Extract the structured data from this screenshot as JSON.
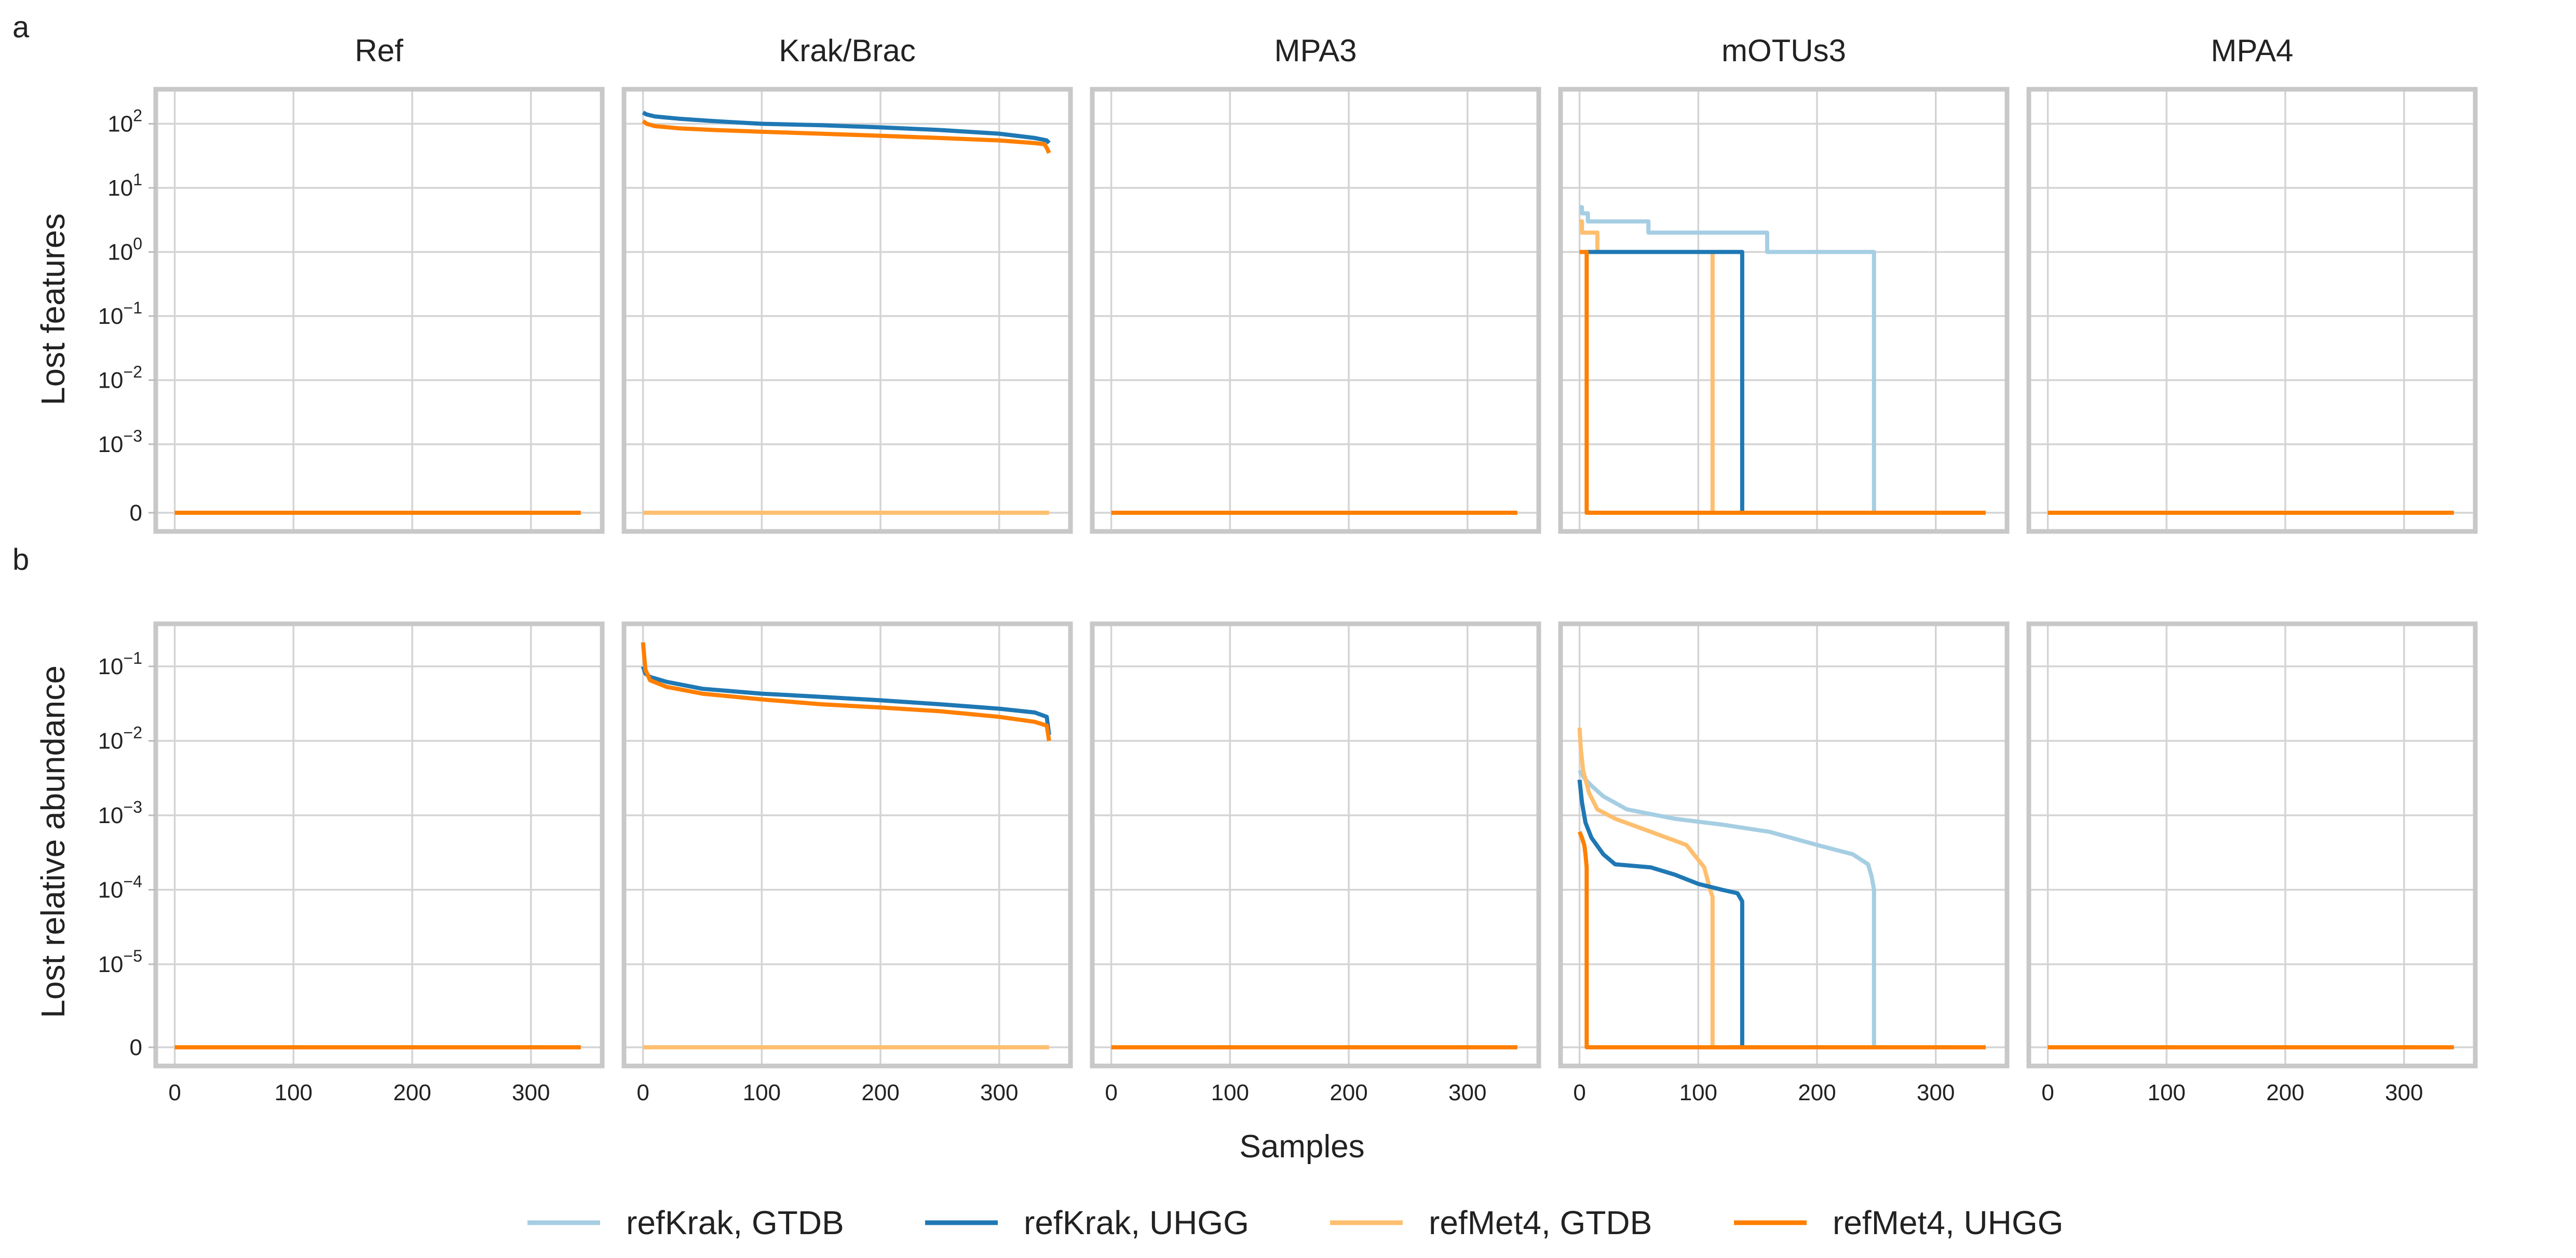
{
  "panel_labels": [
    "a",
    "b"
  ],
  "legend": [
    {
      "label": "refKrak, GTDB",
      "color": "#a6cee3"
    },
    {
      "label": "refKrak, UHGG",
      "color": "#1f78b4"
    },
    {
      "label": "refMet4, GTDB",
      "color": "#fdbf6f"
    },
    {
      "label": "refMet4, UHGG",
      "color": "#ff7f00"
    }
  ],
  "chart_data": {
    "type": "line",
    "xlabel": "Samples",
    "columns": [
      "Ref",
      "Krak/Brac",
      "MPA3",
      "mOTUs3",
      "MPA4"
    ],
    "x_ticks": [
      0,
      100,
      200,
      300
    ],
    "xlim": [
      -16,
      360
    ],
    "series_names": [
      "refKrak, GTDB",
      "refKrak, UHGG",
      "refMet4, GTDB",
      "refMet4, UHGG"
    ],
    "rows": [
      {
        "ylabel": "Lost features",
        "y_scale": "symlog",
        "y_ticks": [
          {
            "value": 0,
            "base": "0",
            "exp": ""
          },
          {
            "value": 0.001,
            "base": "10",
            "exp": "−3"
          },
          {
            "value": 0.01,
            "base": "10",
            "exp": "−2"
          },
          {
            "value": 0.1,
            "base": "10",
            "exp": "−1"
          },
          {
            "value": 1,
            "base": "10",
            "exp": "0"
          },
          {
            "value": 10,
            "base": "10",
            "exp": "1"
          },
          {
            "value": 100,
            "base": "10",
            "exp": "2"
          }
        ],
        "panels": [
          {
            "column": "Ref",
            "series": [
              {
                "name": "refMet4, UHGG",
                "x": [
                  0,
                  342
                ],
                "y": [
                  0,
                  0
                ]
              }
            ]
          },
          {
            "column": "Krak/Brac",
            "series": [
              {
                "name": "refMet4, GTDB",
                "x": [
                  0,
                  342
                ],
                "y": [
                  0,
                  0
                ]
              },
              {
                "name": "refKrak, UHGG",
                "x": [
                  0,
                  3,
                  10,
                  30,
                  60,
                  100,
                  150,
                  200,
                  250,
                  300,
                  330,
                  340,
                  342
                ],
                "y": [
                  150,
                  140,
                  130,
                  120,
                  110,
                  100,
                  95,
                  88,
                  80,
                  70,
                  60,
                  55,
                  50
                ]
              },
              {
                "name": "refMet4, UHGG",
                "x": [
                  0,
                  3,
                  10,
                  30,
                  60,
                  100,
                  150,
                  200,
                  250,
                  300,
                  330,
                  338,
                  340,
                  342
                ],
                "y": [
                  110,
                  100,
                  92,
                  85,
                  80,
                  75,
                  70,
                  65,
                  60,
                  55,
                  50,
                  48,
                  42,
                  35
                ]
              }
            ]
          },
          {
            "column": "MPA3",
            "series": [
              {
                "name": "refMet4, UHGG",
                "x": [
                  0,
                  342
                ],
                "y": [
                  0,
                  0
                ]
              }
            ]
          },
          {
            "column": "mOTUs3",
            "series": [
              {
                "name": "refKrak, GTDB",
                "x": [
                  0,
                  2,
                  2,
                  7,
                  7,
                  14,
                  14,
                  58,
                  58,
                  158,
                  158,
                  248,
                  248,
                  342
                ],
                "y": [
                  5,
                  5,
                  4,
                  4,
                  3,
                  3,
                  3,
                  3,
                  2,
                  2,
                  1,
                  1,
                  0,
                  0
                ]
              },
              {
                "name": "refMet4, GTDB",
                "x": [
                  0,
                  2,
                  2,
                  8,
                  8,
                  15,
                  15,
                  112,
                  112,
                  342
                ],
                "y": [
                  3,
                  3,
                  2,
                  2,
                  2,
                  2,
                  1,
                  1,
                  0,
                  0
                ]
              },
              {
                "name": "refKrak, UHGG",
                "x": [
                  0,
                  137,
                  137,
                  342
                ],
                "y": [
                  1,
                  1,
                  0,
                  0
                ]
              },
              {
                "name": "refMet4, UHGG",
                "x": [
                  0,
                  6,
                  6,
                  342
                ],
                "y": [
                  1,
                  1,
                  0,
                  0
                ]
              }
            ]
          },
          {
            "column": "MPA4",
            "series": [
              {
                "name": "refMet4, UHGG",
                "x": [
                  0,
                  342
                ],
                "y": [
                  0,
                  0
                ]
              }
            ]
          }
        ]
      },
      {
        "ylabel": "Lost relative abundance",
        "y_scale": "symlog",
        "y_ticks": [
          {
            "value": 0,
            "base": "0",
            "exp": ""
          },
          {
            "value": 1e-05,
            "base": "10",
            "exp": "−5"
          },
          {
            "value": 0.0001,
            "base": "10",
            "exp": "−4"
          },
          {
            "value": 0.001,
            "base": "10",
            "exp": "−3"
          },
          {
            "value": 0.01,
            "base": "10",
            "exp": "−2"
          },
          {
            "value": 0.1,
            "base": "10",
            "exp": "−1"
          }
        ],
        "panels": [
          {
            "column": "Ref",
            "series": [
              {
                "name": "refMet4, UHGG",
                "x": [
                  0,
                  342
                ],
                "y": [
                  0,
                  0
                ]
              }
            ]
          },
          {
            "column": "Krak/Brac",
            "series": [
              {
                "name": "refMet4, GTDB",
                "x": [
                  0,
                  342
                ],
                "y": [
                  0,
                  0
                ]
              },
              {
                "name": "refKrak, UHGG",
                "x": [
                  0,
                  2,
                  6,
                  20,
                  50,
                  100,
                  150,
                  200,
                  250,
                  300,
                  330,
                  340,
                  342
                ],
                "y": [
                  0.1,
                  0.08,
                  0.072,
                  0.062,
                  0.05,
                  0.043,
                  0.039,
                  0.035,
                  0.031,
                  0.027,
                  0.024,
                  0.021,
                  0.012
                ]
              },
              {
                "name": "refMet4, UHGG",
                "x": [
                  0,
                  2,
                  6,
                  20,
                  50,
                  100,
                  150,
                  200,
                  250,
                  300,
                  330,
                  340,
                  342
                ],
                "y": [
                  0.21,
                  0.09,
                  0.065,
                  0.053,
                  0.043,
                  0.036,
                  0.031,
                  0.028,
                  0.025,
                  0.021,
                  0.018,
                  0.016,
                  0.01
                ]
              }
            ]
          },
          {
            "column": "MPA3",
            "series": [
              {
                "name": "refMet4, UHGG",
                "x": [
                  0,
                  342
                ],
                "y": [
                  0,
                  0
                ]
              }
            ]
          },
          {
            "column": "mOTUs3",
            "series": [
              {
                "name": "refKrak, GTDB",
                "x": [
                  0,
                  2,
                  5,
                  10,
                  20,
                  40,
                  80,
                  120,
                  160,
                  200,
                  230,
                  243,
                  246,
                  248,
                  248,
                  342
                ],
                "y": [
                  0.004,
                  0.0035,
                  0.003,
                  0.0025,
                  0.0018,
                  0.0012,
                  0.0009,
                  0.00075,
                  0.0006,
                  0.0004,
                  0.0003,
                  0.00022,
                  0.00015,
                  0.0001,
                  0,
                  0
                ]
              },
              {
                "name": "refMet4, GTDB",
                "x": [
                  0,
                  1,
                  3,
                  8,
                  15,
                  30,
                  60,
                  90,
                  105,
                  110,
                  112,
                  112,
                  342
                ],
                "y": [
                  0.015,
                  0.008,
                  0.004,
                  0.002,
                  0.0012,
                  0.0009,
                  0.0006,
                  0.0004,
                  0.0002,
                  0.0001,
                  8e-05,
                  0,
                  0
                ]
              },
              {
                "name": "refKrak, UHGG",
                "x": [
                  0,
                  2,
                  5,
                  10,
                  20,
                  30,
                  60,
                  80,
                  100,
                  120,
                  133,
                  137,
                  137,
                  342
                ],
                "y": [
                  0.003,
                  0.0015,
                  0.0008,
                  0.0005,
                  0.0003,
                  0.00022,
                  0.0002,
                  0.00016,
                  0.00012,
                  0.0001,
                  9e-05,
                  7e-05,
                  0,
                  0
                ]
              },
              {
                "name": "refMet4, UHGG",
                "x": [
                  0,
                  2,
                  4,
                  5,
                  6,
                  6,
                  342
                ],
                "y": [
                  0.0006,
                  0.0005,
                  0.0004,
                  0.0003,
                  0.0002,
                  0,
                  0
                ]
              }
            ]
          },
          {
            "column": "MPA4",
            "series": [
              {
                "name": "refMet4, UHGG",
                "x": [
                  0,
                  342
                ],
                "y": [
                  0,
                  0
                ]
              }
            ]
          }
        ]
      }
    ]
  }
}
